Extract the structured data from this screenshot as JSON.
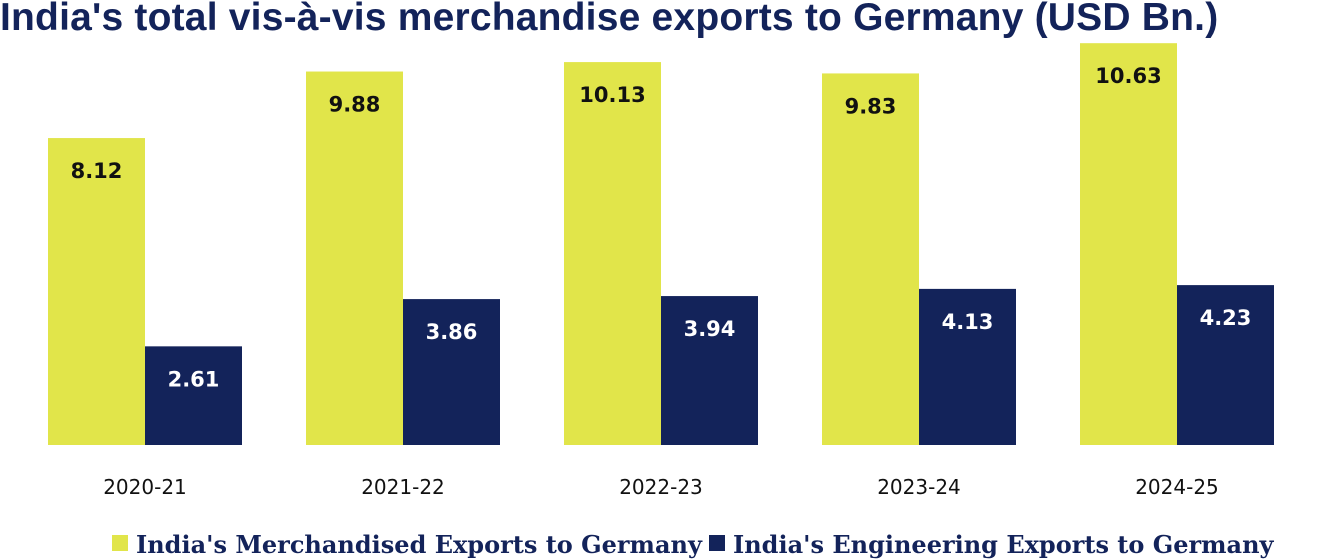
{
  "chart_data": {
    "type": "bar",
    "title": "India's total vis-à-vis merchandise exports to Germany (USD Bn.)",
    "categories": [
      "2020-21",
      "2021-22",
      "2022-23",
      "2023-24",
      "2024-25"
    ],
    "series": [
      {
        "name": "India's Merchandised Exports to Germany",
        "color": "#e1e54a",
        "label_color": "#111111",
        "values": [
          8.12,
          9.88,
          10.13,
          9.83,
          10.63
        ]
      },
      {
        "name": "India's Engineering Exports to Germany",
        "color": "#13235a",
        "label_color": "#ffffff",
        "values": [
          2.61,
          3.86,
          3.94,
          4.13,
          4.23
        ]
      }
    ],
    "ylim": [
      0,
      11.75
    ],
    "xlabel": "",
    "ylabel": "",
    "grid": false,
    "legend": "bottom"
  }
}
